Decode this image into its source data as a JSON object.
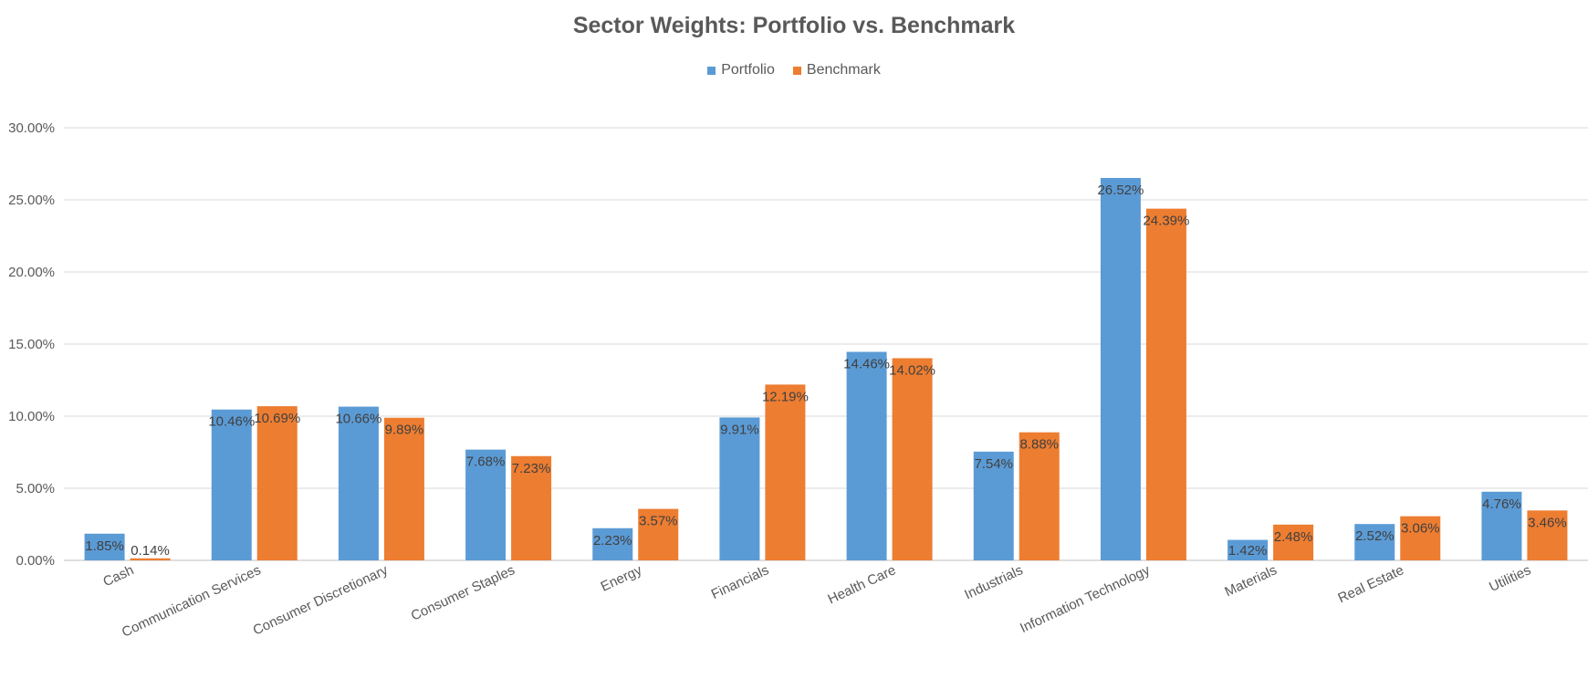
{
  "chart_data": {
    "type": "bar",
    "title": "Sector Weights:  Portfolio vs. Benchmark",
    "xlabel": "",
    "ylabel": "",
    "ylim": [
      0,
      30
    ],
    "yticks": [
      "0.00%",
      "5.00%",
      "10.00%",
      "15.00%",
      "20.00%",
      "25.00%",
      "30.00%"
    ],
    "grid": true,
    "legend_position": "top",
    "categories": [
      "Cash",
      "Communication Services",
      "Consumer Discretionary",
      "Consumer Staples",
      "Energy",
      "Financials",
      "Health Care",
      "Industrials",
      "Information Technology",
      "Materials",
      "Real Estate",
      "Utilities"
    ],
    "series": [
      {
        "name": "Portfolio",
        "color": "#5B9BD5",
        "values": [
          1.85,
          10.46,
          10.66,
          7.68,
          2.23,
          9.91,
          14.46,
          7.54,
          26.52,
          1.42,
          2.52,
          4.76
        ],
        "labels": [
          "1.85%",
          "10.46%",
          "10.66%",
          "7.68%",
          "2.23%",
          "9.91%",
          "14.46%",
          "7.54%",
          "26.52%",
          "1.42%",
          "2.52%",
          "4.76%"
        ]
      },
      {
        "name": "Benchmark",
        "color": "#ED7D31",
        "values": [
          0.14,
          10.69,
          9.89,
          7.23,
          3.57,
          12.19,
          14.02,
          8.88,
          24.39,
          2.48,
          3.06,
          3.46
        ],
        "labels": [
          "0.14%",
          "10.69%",
          "9.89%",
          "7.23%",
          "3.57%",
          "12.19%",
          "14.02%",
          "8.88%",
          "24.39%",
          "2.48%",
          "3.06%",
          "3.46%"
        ]
      }
    ]
  }
}
